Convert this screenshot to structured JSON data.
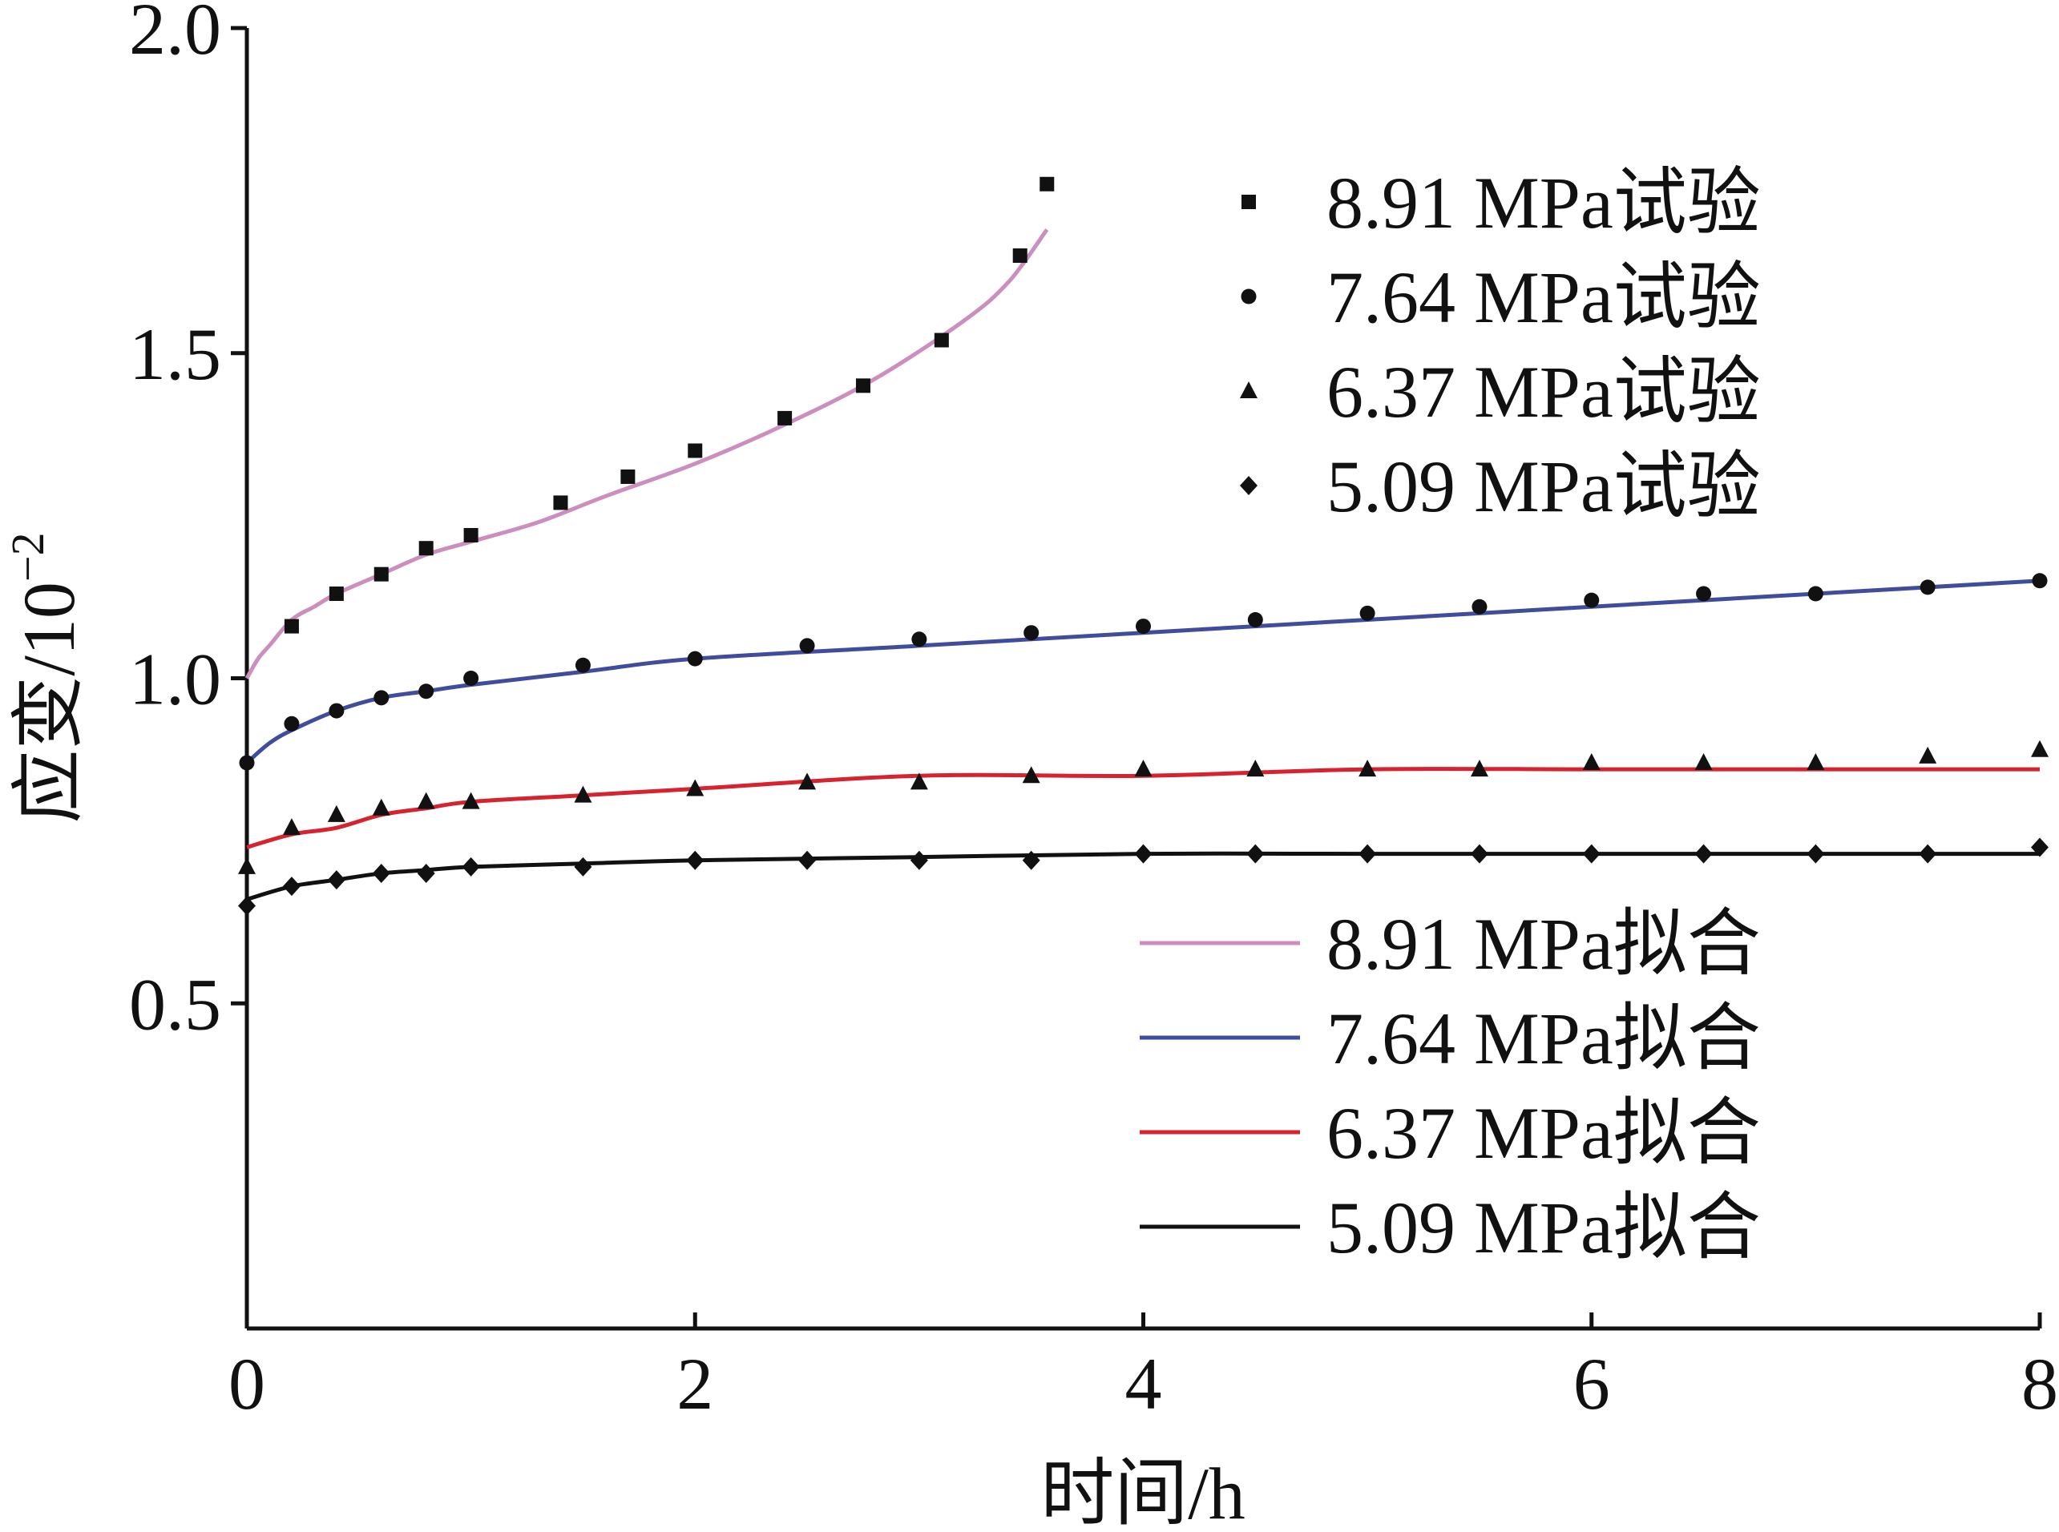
{
  "chart_data": {
    "type": "line",
    "xlabel": "时间/h",
    "ylabel": "应变/10",
    "ylabel_exponent": "−2",
    "xlim": [
      0,
      8
    ],
    "ylim": [
      0,
      2.0
    ],
    "x_ticks": [
      0,
      2,
      4,
      6,
      8
    ],
    "x_tick_labels": [
      "0",
      "2",
      "4",
      "6",
      "8"
    ],
    "y_ticks": [
      0.5,
      1.0,
      1.5,
      2.0
    ],
    "y_tick_labels": [
      "0.5",
      "1.0",
      "1.5",
      "2.0"
    ],
    "grid": false,
    "series": [
      {
        "name": "8.91 MPa试验",
        "kind": "scatter",
        "marker": "square",
        "color": "#111111",
        "x": [
          0.2,
          0.4,
          0.6,
          0.8,
          1.0,
          1.4,
          1.7,
          2.0,
          2.4,
          2.75,
          3.1,
          3.45,
          3.57
        ],
        "y": [
          1.08,
          1.13,
          1.16,
          1.2,
          1.22,
          1.27,
          1.31,
          1.35,
          1.4,
          1.45,
          1.52,
          1.65,
          1.76
        ]
      },
      {
        "name": "7.64 MPa试验",
        "kind": "scatter",
        "marker": "circle",
        "color": "#111111",
        "x": [
          0.0,
          0.2,
          0.4,
          0.6,
          0.8,
          1.0,
          1.5,
          2.0,
          2.5,
          3.0,
          3.5,
          4.0,
          4.5,
          5.0,
          5.5,
          6.0,
          6.5,
          7.0,
          7.5,
          8.0
        ],
        "y": [
          0.87,
          0.93,
          0.95,
          0.97,
          0.98,
          1.0,
          1.02,
          1.03,
          1.05,
          1.06,
          1.07,
          1.08,
          1.09,
          1.1,
          1.11,
          1.12,
          1.13,
          1.13,
          1.14,
          1.15
        ]
      },
      {
        "name": "6.37 MPa试验",
        "kind": "scatter",
        "marker": "triangle",
        "color": "#111111",
        "x": [
          0.0,
          0.2,
          0.4,
          0.6,
          0.8,
          1.0,
          1.5,
          2.0,
          2.5,
          3.0,
          3.5,
          4.0,
          4.5,
          5.0,
          5.5,
          6.0,
          6.5,
          7.0,
          7.5,
          8.0
        ],
        "y": [
          0.71,
          0.77,
          0.79,
          0.8,
          0.81,
          0.81,
          0.82,
          0.83,
          0.84,
          0.84,
          0.85,
          0.86,
          0.86,
          0.86,
          0.86,
          0.87,
          0.87,
          0.87,
          0.88,
          0.89
        ]
      },
      {
        "name": "5.09 MPa试验",
        "kind": "scatter",
        "marker": "diamond",
        "color": "#111111",
        "x": [
          0.0,
          0.2,
          0.4,
          0.6,
          0.8,
          1.0,
          1.5,
          2.0,
          2.5,
          3.0,
          3.5,
          4.0,
          4.5,
          5.0,
          5.5,
          6.0,
          6.5,
          7.0,
          7.5,
          8.0
        ],
        "y": [
          0.65,
          0.68,
          0.69,
          0.7,
          0.7,
          0.71,
          0.71,
          0.72,
          0.72,
          0.72,
          0.72,
          0.73,
          0.73,
          0.73,
          0.73,
          0.73,
          0.73,
          0.73,
          0.73,
          0.74
        ]
      },
      {
        "name": "8.91 MPa拟合",
        "kind": "line",
        "color": "#cc8fbd",
        "x": [
          0.0,
          0.05,
          0.1,
          0.2,
          0.3,
          0.4,
          0.6,
          0.8,
          1.0,
          1.3,
          1.6,
          2.0,
          2.4,
          2.8,
          3.2,
          3.4,
          3.57
        ],
        "y": [
          1.0,
          1.03,
          1.05,
          1.09,
          1.11,
          1.13,
          1.16,
          1.19,
          1.21,
          1.24,
          1.28,
          1.33,
          1.39,
          1.46,
          1.55,
          1.61,
          1.69
        ]
      },
      {
        "name": "7.64 MPa拟合",
        "kind": "line",
        "color": "#404d9c",
        "x": [
          0.0,
          0.1,
          0.2,
          0.4,
          0.6,
          0.8,
          1.0,
          1.5,
          2.0,
          3.0,
          4.0,
          5.0,
          6.0,
          7.0,
          8.0
        ],
        "y": [
          0.87,
          0.9,
          0.92,
          0.95,
          0.97,
          0.98,
          0.99,
          1.01,
          1.03,
          1.05,
          1.07,
          1.09,
          1.11,
          1.13,
          1.15
        ]
      },
      {
        "name": "6.37 MPa拟合",
        "kind": "line",
        "color": "#d52330",
        "x": [
          0.0,
          0.2,
          0.4,
          0.6,
          0.8,
          1.0,
          1.5,
          2.0,
          3.0,
          4.0,
          5.0,
          6.0,
          7.0,
          8.0
        ],
        "y": [
          0.74,
          0.76,
          0.77,
          0.79,
          0.8,
          0.81,
          0.82,
          0.83,
          0.85,
          0.85,
          0.86,
          0.86,
          0.86,
          0.86
        ]
      },
      {
        "name": "5.09 MPa拟合",
        "kind": "line",
        "color": "#111111",
        "x": [
          0.0,
          0.2,
          0.4,
          0.6,
          0.8,
          1.0,
          1.5,
          2.0,
          3.0,
          4.0,
          5.0,
          6.0,
          7.0,
          8.0
        ],
        "y": [
          0.66,
          0.68,
          0.69,
          0.7,
          0.705,
          0.71,
          0.715,
          0.72,
          0.725,
          0.73,
          0.73,
          0.73,
          0.73,
          0.73
        ]
      }
    ],
    "legend_placement": [
      "top-right",
      "lower-right"
    ]
  }
}
